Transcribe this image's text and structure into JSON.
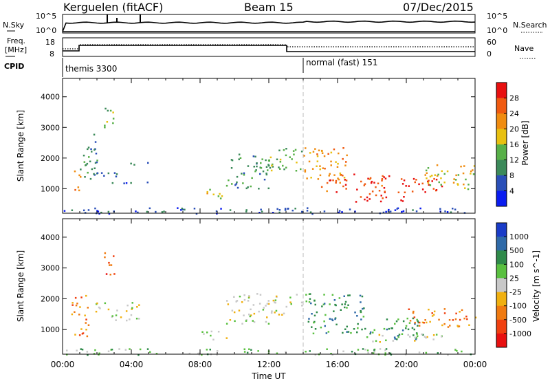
{
  "header": {
    "site": "Kerguelen (fitACF)",
    "beam": "Beam 15",
    "date": "07/Dec/2015"
  },
  "nsky_panel": {
    "left_label": "N.Sky",
    "right_label": "N.Search",
    "tick_top": "10^5",
    "tick_bottom": "10^0",
    "right_tick_top": "10^5",
    "right_tick_bottom": "10^0"
  },
  "freq_panel": {
    "left_label_1": "Freq.",
    "left_label_2": "[MHz]",
    "right_label": "Nave",
    "left_ticks": [
      "18",
      "8"
    ],
    "right_ticks": [
      "60",
      "0"
    ]
  },
  "cpid_panel": {
    "label": "CPID",
    "modes": [
      {
        "name": "themis 3300",
        "start_hour": 0.0
      },
      {
        "name": "normal (fast) 151",
        "start_hour": 14.0
      }
    ]
  },
  "chart_data": [
    {
      "type": "heatmap",
      "name": "power",
      "xlabel": "",
      "ylabel": "Slant Range [km]",
      "xlim": [
        0,
        24
      ],
      "ylim": [
        200,
        4600
      ],
      "yticks": [
        1000,
        2000,
        3000,
        4000
      ],
      "colorbar_label": "Power [dB]",
      "colorbar_ticks": [
        "4",
        "8",
        "12",
        "16",
        "20",
        "24",
        "28"
      ],
      "colorbar_colors": [
        "#0a1cf0",
        "#2a4fb8",
        "#3c8a5a",
        "#58b048",
        "#e8c010",
        "#f08c10",
        "#f05a10",
        "#e81010"
      ],
      "echo_regions": [
        {
          "t0": 0.6,
          "t1": 1.0,
          "r0": 800,
          "r1": 1700,
          "level": 5
        },
        {
          "t0": 1.0,
          "t1": 2.0,
          "r0": 1200,
          "r1": 2800,
          "level": 2
        },
        {
          "t0": 2.4,
          "t1": 3.0,
          "r0": 2800,
          "r1": 3700,
          "level": 3
        },
        {
          "t0": 1.5,
          "t1": 3.8,
          "r0": 1400,
          "r1": 1600,
          "level": 1
        },
        {
          "t0": 2.5,
          "t1": 5.5,
          "r0": 1200,
          "r1": 1300,
          "level": 1
        },
        {
          "t0": 3.5,
          "t1": 5.5,
          "r0": 1800,
          "r1": 1900,
          "level": 1
        },
        {
          "t0": 8.0,
          "t1": 9.5,
          "r0": 700,
          "r1": 1000,
          "level": 4
        },
        {
          "t0": 9.5,
          "t1": 12.0,
          "r0": 1000,
          "r1": 2200,
          "level": 2
        },
        {
          "t0": 12.0,
          "t1": 14.0,
          "r0": 1600,
          "r1": 2400,
          "level": 3
        },
        {
          "t0": 14.0,
          "t1": 16.5,
          "r0": 1200,
          "r1": 2400,
          "level": 5
        },
        {
          "t0": 15.0,
          "t1": 19.0,
          "r0": 900,
          "r1": 1500,
          "level": 6
        },
        {
          "t0": 17.0,
          "t1": 20.0,
          "r0": 600,
          "r1": 900,
          "level": 7
        },
        {
          "t0": 19.5,
          "t1": 22.5,
          "r0": 900,
          "r1": 1400,
          "level": 7
        },
        {
          "t0": 21.0,
          "t1": 24.0,
          "r0": 1000,
          "r1": 1800,
          "level": 4
        },
        {
          "t0": 0.0,
          "t1": 24.0,
          "r0": 200,
          "r1": 400,
          "level": 1
        }
      ]
    },
    {
      "type": "heatmap",
      "name": "velocity",
      "xlabel": "Time UT",
      "ylabel": "Slant Range [km]",
      "xlim": [
        0,
        24
      ],
      "ylim": [
        200,
        4600
      ],
      "xticks": [
        "00:00",
        "04:00",
        "08:00",
        "12:00",
        "16:00",
        "20:00",
        "00:00"
      ],
      "yticks": [
        1000,
        2000,
        3000,
        4000
      ],
      "colorbar_label": "Velocity [m s^-1]",
      "colorbar_ticks": [
        "1000",
        "500",
        "100",
        "25",
        "-25",
        "-100",
        "-500",
        "-1000"
      ],
      "colorbar_colors": [
        "#1a3cc8",
        "#2f6aa8",
        "#2f8a4a",
        "#5ac040",
        "#c8c8c8",
        "#f0b010",
        "#f07a10",
        "#f04010",
        "#e81010"
      ],
      "echo_regions": [
        {
          "t0": 0.5,
          "t1": 1.5,
          "r0": 800,
          "r1": 2200,
          "level": 6
        },
        {
          "t0": 2.4,
          "t1": 3.0,
          "r0": 2800,
          "r1": 3700,
          "level": 7
        },
        {
          "t0": 1.5,
          "t1": 4.5,
          "r0": 1600,
          "r1": 1900,
          "level": 4
        },
        {
          "t0": 2.5,
          "t1": 5.5,
          "r0": 1300,
          "r1": 1500,
          "level": 4
        },
        {
          "t0": 8.0,
          "t1": 9.5,
          "r0": 700,
          "r1": 1000,
          "level": 4
        },
        {
          "t0": 9.5,
          "t1": 13.0,
          "r0": 1200,
          "r1": 2200,
          "level": 4
        },
        {
          "t0": 13.0,
          "t1": 14.5,
          "r0": 1800,
          "r1": 2200,
          "level": 4
        },
        {
          "t0": 14.2,
          "t1": 17.5,
          "r0": 900,
          "r1": 2200,
          "level": 2
        },
        {
          "t0": 17.5,
          "t1": 21.0,
          "r0": 700,
          "r1": 1400,
          "level": 2
        },
        {
          "t0": 18.0,
          "t1": 22.5,
          "r0": 600,
          "r1": 900,
          "level": 4
        },
        {
          "t0": 20.0,
          "t1": 24.0,
          "r0": 1100,
          "r1": 1700,
          "level": 6
        },
        {
          "t0": 0.0,
          "t1": 24.0,
          "r0": 200,
          "r1": 400,
          "level": 3
        }
      ]
    }
  ]
}
